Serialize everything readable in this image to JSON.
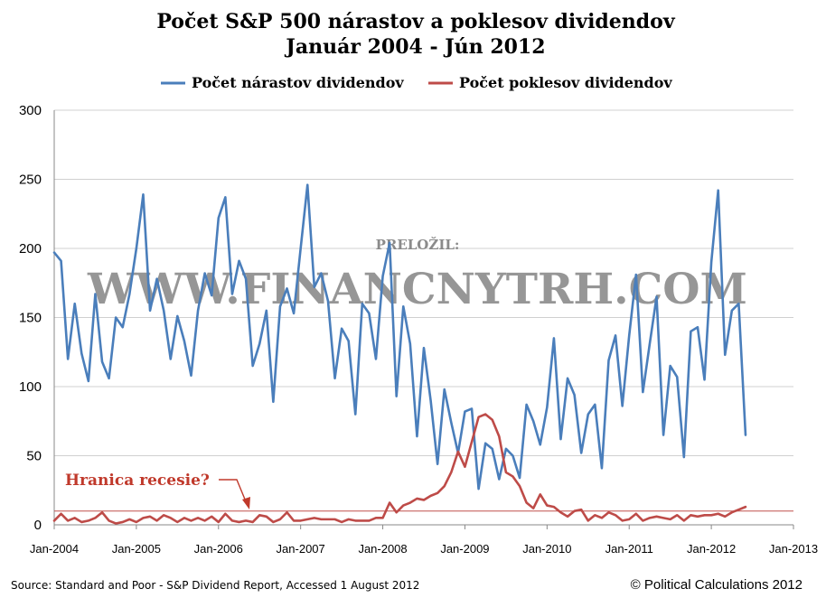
{
  "chart_data": {
    "type": "line",
    "title_lines": [
      "Počet S&P 500 nárastov a poklesov dividendov",
      "Január 2004 - Jún 2012"
    ],
    "ylim": [
      0,
      300
    ],
    "y_ticks": [
      0,
      50,
      100,
      150,
      200,
      250,
      300
    ],
    "x_ticks": [
      "Jan-2004",
      "Jan-2005",
      "Jan-2006",
      "Jan-2007",
      "Jan-2008",
      "Jan-2009",
      "Jan-2010",
      "Jan-2011",
      "Jan-2012",
      "Jan-2013"
    ],
    "x_start": "Jan-2004",
    "x_end": "Jan-2013",
    "grid": true,
    "legend_position": "top",
    "series": [
      {
        "name": "Počet nárastov dividendov",
        "color": "#4a7ebb",
        "values": [
          197,
          191,
          120,
          160,
          124,
          104,
          167,
          118,
          106,
          150,
          143,
          167,
          200,
          239,
          155,
          178,
          155,
          120,
          151,
          133,
          108,
          155,
          182,
          166,
          222,
          237,
          167,
          191,
          178,
          115,
          131,
          155,
          89,
          158,
          171,
          153,
          200,
          246,
          172,
          182,
          162,
          106,
          142,
          133,
          80,
          160,
          153,
          120,
          180,
          204,
          93,
          158,
          131,
          64,
          128,
          90,
          44,
          98,
          74,
          52,
          82,
          84,
          26,
          59,
          55,
          33,
          55,
          50,
          34,
          87,
          75,
          58,
          85,
          135,
          62,
          106,
          94,
          52,
          80,
          87,
          41,
          119,
          137,
          86,
          137,
          181,
          96,
          131,
          165,
          65,
          115,
          107,
          49,
          140,
          143,
          105,
          190,
          242,
          123,
          155,
          160,
          65
        ]
      },
      {
        "name": "Počet poklesov dividendov",
        "color": "#be4b48",
        "values": [
          3,
          8,
          3,
          5,
          2,
          3,
          5,
          9,
          3,
          1,
          2,
          4,
          2,
          5,
          6,
          3,
          7,
          5,
          2,
          5,
          3,
          5,
          3,
          6,
          2,
          8,
          3,
          2,
          3,
          2,
          7,
          6,
          2,
          4,
          9,
          3,
          3,
          4,
          5,
          4,
          4,
          4,
          2,
          4,
          3,
          3,
          3,
          5,
          5,
          16,
          9,
          14,
          16,
          19,
          18,
          21,
          23,
          28,
          38,
          53,
          42,
          60,
          78,
          80,
          76,
          64,
          38,
          35,
          28,
          16,
          12,
          22,
          14,
          13,
          9,
          6,
          10,
          11,
          3,
          7,
          5,
          9,
          7,
          3,
          4,
          8,
          3,
          5,
          6,
          5,
          4,
          7,
          3,
          7,
          6,
          7,
          7,
          8,
          6,
          9,
          11,
          13
        ]
      }
    ],
    "threshold_line": {
      "value": 10,
      "color": "#c0504d"
    },
    "annotation": {
      "text": "Hranica recesie?",
      "color": "#c0392b"
    }
  },
  "watermark": {
    "small": "PRELOŽIL:",
    "big": "WWW.FINANCNYTRH.COM"
  },
  "footer": {
    "source": "Source: Standard and Poor - S&P Dividend Report, Accessed 1 August 2012",
    "copyright": "© Political Calculations 2012"
  }
}
